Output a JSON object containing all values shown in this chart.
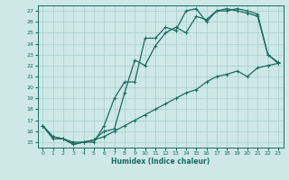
{
  "xlabel": "Humidex (Indice chaleur)",
  "bg_color": "#cde8e5",
  "grid_color": "#a8ceca",
  "line_color": "#1a6b5e",
  "xlim": [
    -0.5,
    23.5
  ],
  "ylim": [
    14.5,
    27.5
  ],
  "xticks": [
    0,
    1,
    2,
    3,
    4,
    5,
    6,
    7,
    8,
    9,
    10,
    11,
    12,
    13,
    14,
    15,
    16,
    17,
    18,
    19,
    20,
    21,
    22,
    23
  ],
  "yticks": [
    15,
    16,
    17,
    18,
    19,
    20,
    21,
    22,
    23,
    24,
    25,
    26,
    27
  ],
  "line1_x": [
    0,
    1,
    2,
    3,
    4,
    5,
    6,
    7,
    8,
    9,
    10,
    11,
    12,
    13,
    14,
    15,
    16,
    17,
    18,
    19,
    20,
    21,
    22,
    23
  ],
  "line1_y": [
    16.5,
    15.5,
    15.3,
    15.0,
    15.0,
    15.0,
    16.5,
    19.0,
    20.5,
    20.5,
    24.5,
    24.5,
    25.5,
    25.2,
    27.0,
    27.2,
    26.0,
    27.0,
    27.0,
    27.2,
    27.0,
    26.7,
    23.0,
    22.2
  ],
  "line2_x": [
    0,
    1,
    2,
    3,
    4,
    5,
    6,
    7,
    8,
    9,
    10,
    11,
    12,
    13,
    14,
    15,
    16,
    17,
    18,
    19,
    20,
    21,
    22,
    23
  ],
  "line2_y": [
    16.5,
    15.3,
    15.3,
    14.8,
    15.0,
    15.2,
    16.0,
    16.2,
    19.5,
    22.5,
    22.0,
    23.8,
    25.0,
    25.5,
    25.0,
    26.5,
    26.2,
    27.0,
    27.2,
    27.0,
    26.8,
    26.5,
    23.0,
    22.3
  ],
  "line3_x": [
    0,
    1,
    2,
    3,
    4,
    5,
    6,
    7,
    8,
    9,
    10,
    11,
    12,
    13,
    14,
    15,
    16,
    17,
    18,
    19,
    20,
    21,
    22,
    23
  ],
  "line3_y": [
    16.5,
    15.5,
    15.3,
    14.8,
    15.0,
    15.2,
    15.5,
    16.0,
    16.5,
    17.0,
    17.5,
    18.0,
    18.5,
    19.0,
    19.5,
    19.8,
    20.5,
    21.0,
    21.2,
    21.5,
    21.0,
    21.8,
    22.0,
    22.2
  ],
  "marker_size": 2.5,
  "linewidth": 0.9
}
